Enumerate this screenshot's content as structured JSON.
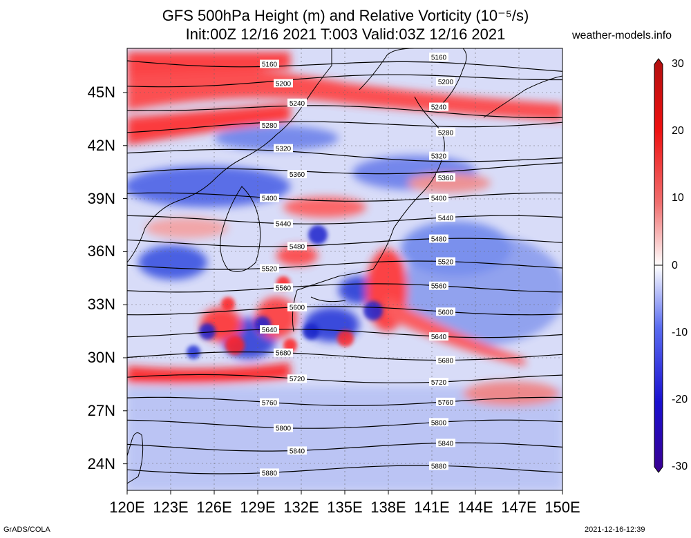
{
  "header": {
    "title_line1": "GFS 500hPa Height (m) and Relative Vorticity (10⁻⁵/s)",
    "title_line2": "Init:00Z 12/16 2021 T:003 Valid:03Z 12/16 2021",
    "site": "weather-models.info"
  },
  "footer": {
    "left": "GrADS/COLA",
    "right": "2021-12-16-12:39"
  },
  "map": {
    "region": "East Asia / Japan",
    "lon_range": [
      120,
      150
    ],
    "lat_range": [
      22.5,
      47.5
    ],
    "lon_ticks": [
      "120E",
      "123E",
      "126E",
      "129E",
      "132E",
      "135E",
      "138E",
      "141E",
      "144E",
      "147E",
      "150E"
    ],
    "lat_ticks": [
      "45N",
      "42N",
      "39N",
      "36N",
      "33N",
      "30N",
      "27N",
      "24N"
    ],
    "height_contours_m": [
      5160,
      5200,
      5240,
      5280,
      5320,
      5360,
      5400,
      5440,
      5480,
      5520,
      5560,
      5600,
      5640,
      5680,
      5720,
      5760,
      5800,
      5840,
      5880
    ],
    "colorbar": {
      "labels": [
        "30",
        "20",
        "10",
        "0",
        "-10",
        "-20",
        "-30"
      ],
      "min": -30,
      "max": 30,
      "colors": {
        "max": "#b01010",
        "positive": "#ff2020",
        "zero": "#ffffff",
        "negative": "#2020ff",
        "min": "#3a0090"
      }
    }
  }
}
